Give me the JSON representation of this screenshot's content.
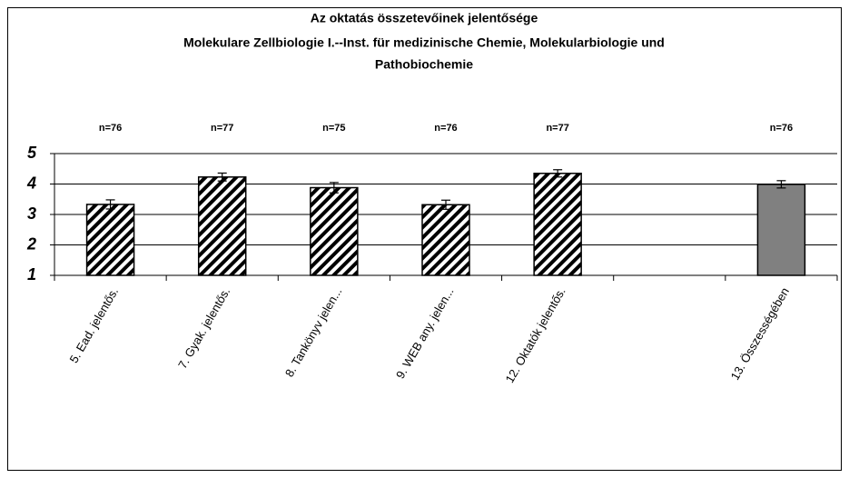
{
  "chart_data": {
    "type": "bar",
    "title": [
      "Az oktatás összetevőinek jelentősége",
      "Molekulare Zellbiologie I.--Inst. für medizinische Chemie, Molekularbiologie und",
      "Pathobiochemie"
    ],
    "categories": [
      "5. Ead. jelentős.",
      "7. Gyak. jelentős.",
      "8. Tankönyv jelen...",
      "9. WEB any. jelen...",
      "12. Oktatók jelentős.",
      null,
      "13. Összességében"
    ],
    "values": [
      3.33,
      4.23,
      3.88,
      3.32,
      4.35,
      null,
      3.99
    ],
    "errors": [
      0.15,
      0.13,
      0.17,
      0.15,
      0.12,
      null,
      0.12
    ],
    "annotations": [
      "n=76",
      "n=77",
      "n=75",
      "n=76",
      "n=77",
      null,
      "n=76"
    ],
    "colors": [
      "#000000",
      "#000000",
      "#000000",
      "#000000",
      "#000000",
      null,
      "#808080"
    ],
    "fills": [
      "hatch",
      "hatch",
      "hatch",
      "hatch",
      "hatch",
      null,
      "solid"
    ],
    "ylim": [
      1,
      5
    ],
    "yticks": [
      1,
      2,
      3,
      4,
      5
    ],
    "grid": true
  }
}
